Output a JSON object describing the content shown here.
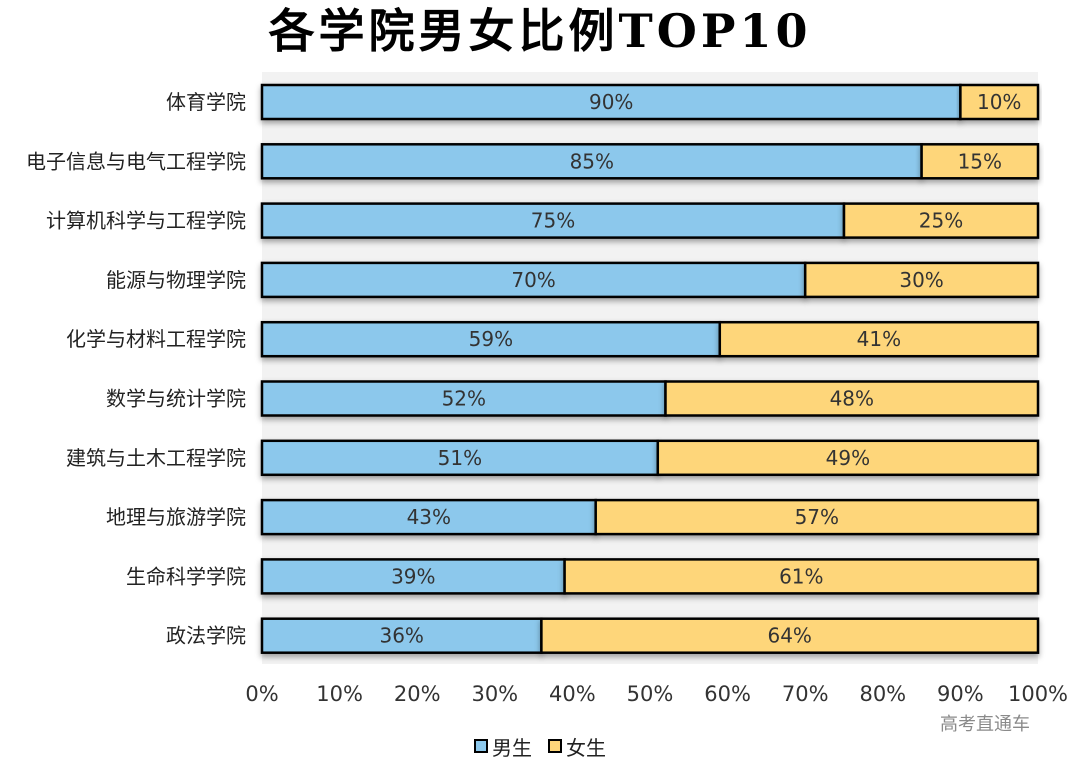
{
  "chart_data": {
    "type": "bar",
    "orientation": "horizontal",
    "stacked": true,
    "title": "各学院男女比例TOP10",
    "categories": [
      "体育学院",
      "电子信息与电气工程学院",
      "计算机科学与工程学院",
      "能源与物理学院",
      "化学与材料工程学院",
      "数学与统计学院",
      "建筑与土木工程学院",
      "地理与旅游学院",
      "生命科学学院",
      "政法学院"
    ],
    "series": [
      {
        "name": "男生",
        "color": "#8cc8ec",
        "values": [
          90,
          85,
          75,
          70,
          59,
          52,
          51,
          43,
          39,
          36
        ],
        "labels": [
          "90%",
          "85%",
          "75%",
          "70%",
          "59%",
          "52%",
          "51%",
          "43%",
          "39%",
          "36%"
        ]
      },
      {
        "name": "女生",
        "color": "#fed67a",
        "values": [
          10,
          15,
          25,
          30,
          41,
          48,
          49,
          57,
          61,
          64
        ],
        "labels": [
          "10%",
          "15%",
          "25%",
          "30%",
          "41%",
          "48%",
          "49%",
          "57%",
          "61%",
          "64%"
        ]
      }
    ],
    "xlim": [
      0,
      100
    ],
    "xticks": [
      "0%",
      "10%",
      "20%",
      "30%",
      "40%",
      "50%",
      "60%",
      "70%",
      "80%",
      "90%",
      "100%"
    ],
    "legend_position": "bottom",
    "grid": false
  },
  "watermark": "高考直通车"
}
